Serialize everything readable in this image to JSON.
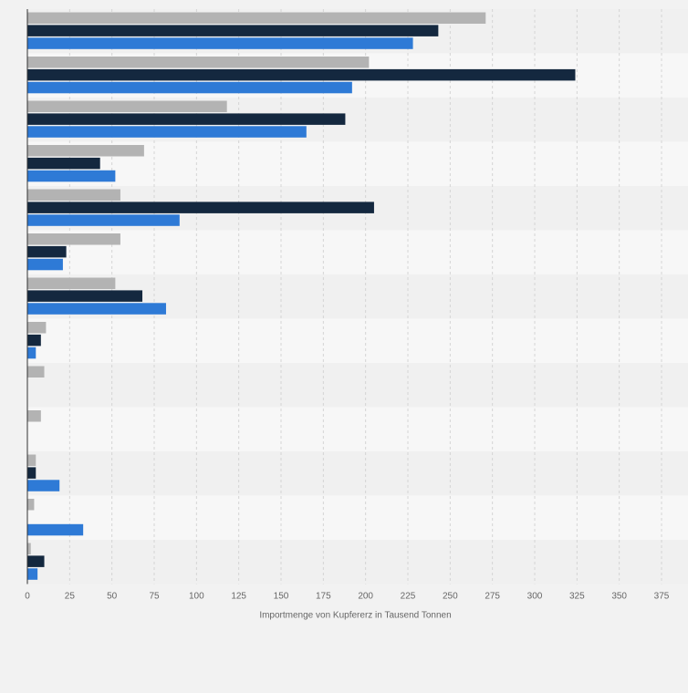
{
  "chart_data": {
    "type": "bar",
    "orientation": "horizontal",
    "xlabel": "Importmenge von Kupfererz in Tausend Tonnen",
    "ylabel": "",
    "xlim": [
      0,
      375
    ],
    "xticks": [
      "0",
      "25",
      "50",
      "75",
      "100",
      "125",
      "150",
      "175",
      "200",
      "225",
      "250",
      "275",
      "300",
      "325",
      "350",
      "375"
    ],
    "grid": "vertical dashed",
    "legend": "none",
    "categories": [
      "",
      "",
      "",
      "",
      "",
      "",
      "",
      "",
      "",
      "",
      "",
      "",
      ""
    ],
    "series": [
      {
        "color": "#b3b3b3",
        "values": [
          271,
          202,
          118,
          69,
          55,
          55,
          52,
          11,
          10,
          8,
          5,
          4,
          2
        ]
      },
      {
        "color": "#14283f",
        "values": [
          243,
          324,
          188,
          43,
          205,
          23,
          68,
          8,
          0,
          0,
          5,
          0,
          10
        ]
      },
      {
        "color": "#2e7ad6",
        "values": [
          228,
          192,
          165,
          52,
          90,
          21,
          82,
          5,
          0,
          0,
          19,
          33,
          6
        ]
      }
    ]
  }
}
